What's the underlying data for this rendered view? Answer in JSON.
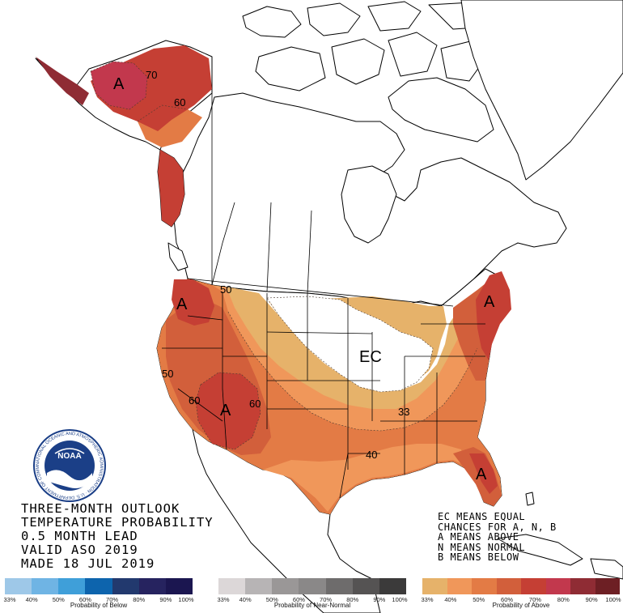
{
  "title_lines": [
    "THREE-MONTH OUTLOOK",
    "TEMPERATURE PROBABILITY",
    "0.5 MONTH LEAD",
    "VALID ASO 2019",
    "MADE 18 JUL 2019"
  ],
  "ec_legend_lines": [
    "EC MEANS EQUAL",
    "CHANCES FOR A, N, B",
    "A MEANS ABOVE",
    "N MEANS NORMAL",
    "B MEANS BELOW"
  ],
  "logo": {
    "text": "NOAA",
    "ring_text": "NATIONAL OCEANIC AND ATMOSPHERIC ADMINISTRATION · U.S. DEPARTMENT OF COMMERCE"
  },
  "map_labels": {
    "alaska_A": "A",
    "alaska_70": "70",
    "alaska_60": "60",
    "pnw_A": "A",
    "nw_50": "50",
    "ca_50": "50",
    "sw_60_left": "60",
    "sw_A": "A",
    "sw_60_right": "60",
    "ec": "EC",
    "mid_33": "33",
    "south_40": "40",
    "ne_A": "A",
    "fl_A": "A"
  },
  "colors": {
    "above_33": "#e6b26a",
    "above_40": "#f0975a",
    "above_50": "#e37b45",
    "above_60": "#d25f3b",
    "above_70": "#c53f34",
    "above_80": "#c2384d",
    "above_90": "#8f2c34",
    "above_100": "#6d1f24",
    "land": "#ffffff",
    "border": "#000000"
  },
  "colorbars": [
    {
      "name": "below",
      "title": "Probability of Below",
      "ticks": [
        "33%",
        "40%",
        "50%",
        "60%",
        "70%",
        "80%",
        "90%",
        "100%"
      ],
      "colors": [
        "#9ec8e8",
        "#6fb4e4",
        "#3f9fd9",
        "#0d64ad",
        "#22396e",
        "#26235f",
        "#1b1650"
      ]
    },
    {
      "name": "near-normal",
      "title": "Probability of Near-Normal",
      "ticks": [
        "33%",
        "40%",
        "50%",
        "60%",
        "70%",
        "80%",
        "90%",
        "100%"
      ],
      "colors": [
        "#dcd7d8",
        "#b7b4b5",
        "#9a9797",
        "#8a8888",
        "#6e6c6c",
        "#555353",
        "#3b3a3a"
      ]
    },
    {
      "name": "above",
      "title": "Probability of Above",
      "ticks": [
        "33%",
        "40%",
        "50%",
        "60%",
        "70%",
        "80%",
        "90%",
        "100%"
      ],
      "colors": [
        "#e6b26a",
        "#f0975a",
        "#e37b45",
        "#d25f3b",
        "#c53f34",
        "#c2384d",
        "#8f2c34",
        "#6d1f24"
      ]
    }
  ]
}
